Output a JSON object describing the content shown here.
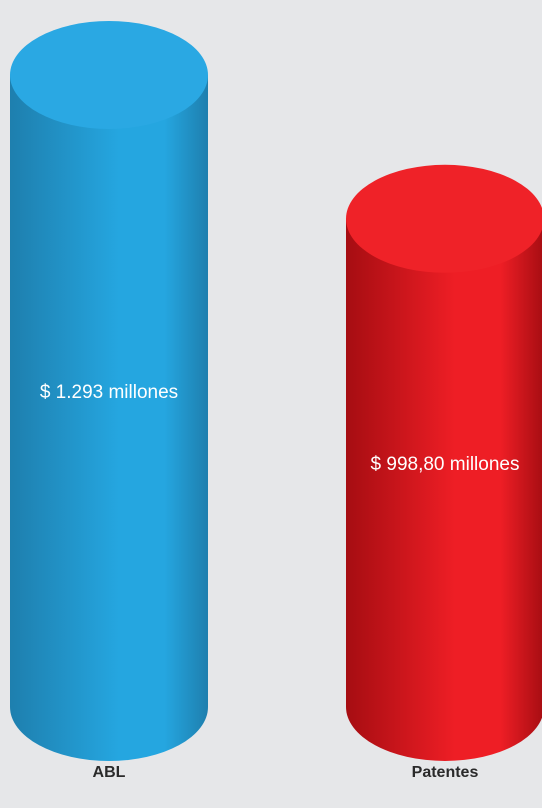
{
  "chart_data": {
    "type": "bar",
    "style": "3d-cylinder",
    "categories": [
      "ABL",
      "Patentes"
    ],
    "values": [
      1293,
      998.8
    ],
    "value_labels": [
      "$ 1.293 millones",
      "$ 998,80 millones"
    ],
    "ylim": [
      0,
      1293
    ],
    "unit": "$ millones",
    "grid": false,
    "legend": "none",
    "colors": {
      "ABL": {
        "top": "#2aa8e3",
        "dark": "#1e7fae",
        "light": "#25a6e0"
      },
      "Patentes": {
        "top": "#ef2228",
        "dark": "#a60d12",
        "light": "#ee1e25"
      }
    }
  }
}
